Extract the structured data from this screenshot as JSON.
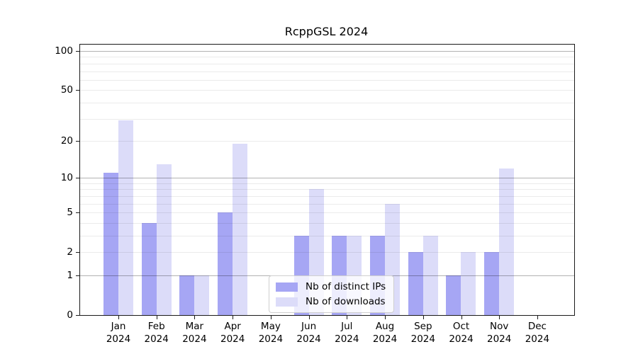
{
  "chart_data": {
    "type": "bar",
    "title": "RcppGSL 2024",
    "categories": [
      "Jan",
      "Feb",
      "Mar",
      "Apr",
      "May",
      "Jun",
      "Jul",
      "Aug",
      "Sep",
      "Oct",
      "Nov",
      "Dec"
    ],
    "category_year": "2024",
    "series": [
      {
        "name": "Nb of distinct IPs",
        "color": "#a6a6f4",
        "values": [
          11,
          4,
          1,
          5,
          0,
          3,
          3,
          3,
          2,
          1,
          2,
          0
        ]
      },
      {
        "name": "Nb of downloads",
        "color": "#dcdcf9",
        "values": [
          29,
          13,
          1,
          19,
          0,
          8,
          3,
          6,
          3,
          2,
          12,
          0
        ]
      }
    ],
    "yscale": "log1p",
    "ylim": [
      0,
      112
    ],
    "yticks_labeled": [
      100,
      50,
      20,
      10,
      5,
      2,
      1,
      0
    ],
    "gridlines_major": [
      1,
      10,
      100
    ],
    "gridlines_minor": [
      2,
      3,
      4,
      5,
      6,
      7,
      8,
      9,
      20,
      30,
      40,
      50,
      60,
      70,
      80,
      90
    ],
    "grid_on": true,
    "legend_position": "lower-center",
    "colors": {
      "grid_major": "rgba(0,0,0,0.30)",
      "grid_minor": "rgba(0,0,0,0.08)",
      "axis": "#1a1a1a",
      "background": "#ffffff",
      "text": "#000000"
    }
  }
}
